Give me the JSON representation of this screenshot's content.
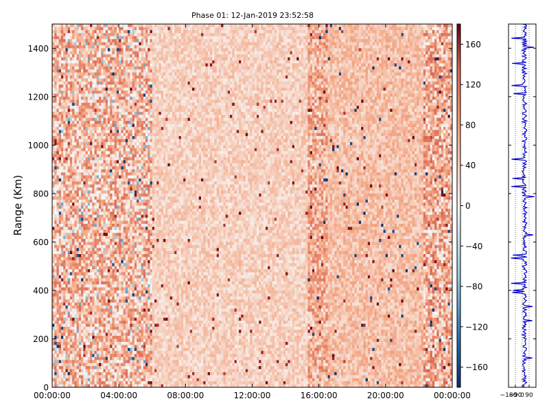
{
  "chart_data": [
    {
      "type": "heatmap",
      "title": "Phase 01: 12-Jan-2019 23:52:58",
      "ylabel": "Range (Km)",
      "xlabel": "",
      "x_ticks": [
        "00:00:00",
        "04:00:00",
        "08:00:00",
        "12:00:00",
        "16:00:00",
        "20:00:00",
        "00:00:00"
      ],
      "x_range_hours": [
        0,
        24
      ],
      "y_ticks": [
        0,
        200,
        400,
        600,
        800,
        1000,
        1200,
        1400
      ],
      "ylim": [
        0,
        1500
      ],
      "colorbar": {
        "ticks": [
          -160,
          -120,
          -80,
          -40,
          0,
          40,
          80,
          120,
          160
        ],
        "range": [
          -180,
          180
        ],
        "colormap": "red-white-blue",
        "color_low": "#08306b",
        "color_mid": "#f7f7f7",
        "color_high": "#67000d"
      },
      "grid": false
    },
    {
      "type": "line",
      "title": "",
      "x_ticks": [
        "-180",
        "-90",
        "0",
        "90"
      ],
      "xlim": [
        -180,
        180
      ],
      "ylim": [
        0,
        1500
      ],
      "series_color": "#0000cc",
      "grid": "vertical-dotted"
    }
  ]
}
